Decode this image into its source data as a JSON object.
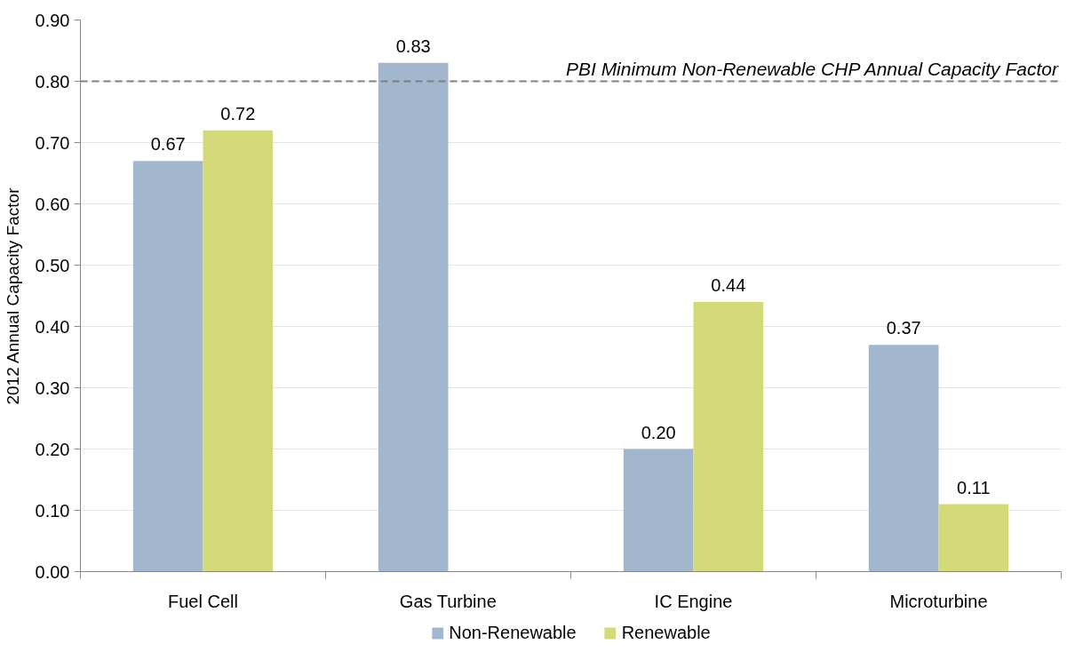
{
  "chart_data": {
    "type": "bar",
    "categories": [
      "Fuel Cell",
      "Gas Turbine",
      "IC Engine",
      "Microturbine"
    ],
    "ylabel": "2012 Annual Capacity Factor",
    "series": [
      {
        "name": "Non-Renewable",
        "color": "#a2b7ce",
        "values": [
          0.67,
          0.83,
          0.2,
          0.37
        ],
        "value_labels": [
          "0.67",
          "0.83",
          "0.20",
          "0.37"
        ]
      },
      {
        "name": "Renewable",
        "color": "#d4da7a",
        "values": [
          0.72,
          null,
          0.44,
          0.11
        ],
        "value_labels": [
          "0.72",
          null,
          "0.44",
          "0.11"
        ]
      }
    ],
    "ylim": [
      0,
      0.9
    ],
    "yticks": [
      {
        "value": 0,
        "label": "0.00"
      },
      {
        "value": 0.1,
        "label": "0.10"
      },
      {
        "value": 0.2,
        "label": "0.20"
      },
      {
        "value": 0.3,
        "label": "0.30"
      },
      {
        "value": 0.4,
        "label": "0.40"
      },
      {
        "value": 0.5,
        "label": "0.50"
      },
      {
        "value": 0.6,
        "label": "0.60"
      },
      {
        "value": 0.7,
        "label": "0.70"
      },
      {
        "value": 0.8,
        "label": "0.80"
      },
      {
        "value": 0.9,
        "label": "0.90"
      }
    ],
    "grid": "y",
    "legend": "bottom",
    "ref_lines": [
      {
        "axis": "y",
        "value": 0.8,
        "label": "PBI Minimum Non-Renewable CHP Annual Capacity Factor",
        "color": "#808080",
        "line_style": "dashed"
      }
    ]
  }
}
